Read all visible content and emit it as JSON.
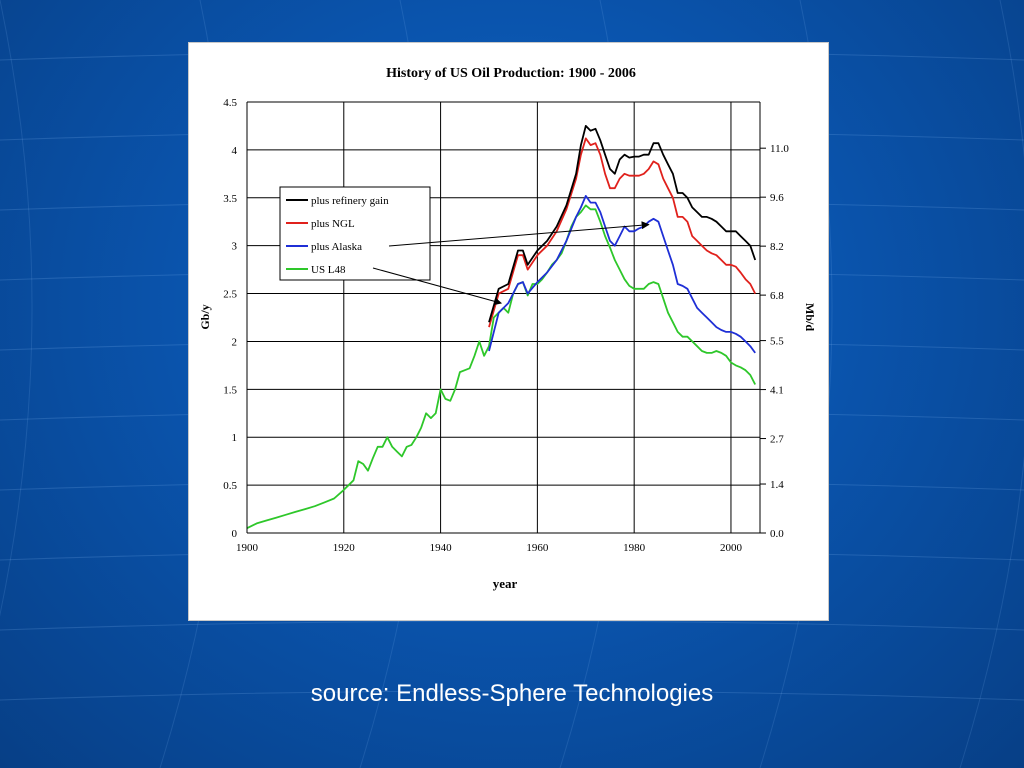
{
  "slide": {
    "source_caption": "source: Endless-Sphere Technologies"
  },
  "colors": {
    "background": "#0a54ad",
    "series_refinery": "#000000",
    "series_ngl": "#e0211c",
    "series_alaska": "#1f2fd6",
    "series_l48": "#2ec72a"
  },
  "chart_data": {
    "type": "line",
    "title": "History of US Oil Production: 1900 - 2006",
    "xlabel": "year",
    "ylabel": "Gb/y",
    "y2label": "Mb/d",
    "xlim": [
      1900,
      2006
    ],
    "ylim": [
      0,
      4.5
    ],
    "xticks": [
      "1900",
      "1920",
      "1940",
      "1960",
      "1980",
      "2000"
    ],
    "yticks": [
      "0",
      "0.5",
      "1",
      "1.5",
      "2",
      "2.5",
      "3",
      "3.5",
      "4",
      "4.5"
    ],
    "y2ticks": [
      "0.0",
      "1.4",
      "2.7",
      "4.1",
      "5.5",
      "6.8",
      "8.2",
      "9.6",
      "11.0"
    ],
    "grid": true,
    "legend_position": "upper-left",
    "legend": [
      "plus refinery gain",
      "plus NGL",
      "plus Alaska",
      "US L48"
    ],
    "series": [
      {
        "name": "plus refinery gain",
        "x": [
          1950,
          1952,
          1954,
          1956,
          1957,
          1958,
          1960,
          1962,
          1964,
          1966,
          1968,
          1969,
          1970,
          1971,
          1972,
          1973,
          1974,
          1975,
          1976,
          1977,
          1978,
          1979,
          1980,
          1981,
          1982,
          1983,
          1984,
          1985,
          1986,
          1987,
          1988,
          1989,
          1990,
          1991,
          1992,
          1993,
          1994,
          1995,
          1996,
          1997,
          1998,
          1999,
          2000,
          2001,
          2002,
          2003,
          2004,
          2005
        ],
        "values": [
          2.2,
          2.55,
          2.6,
          2.95,
          2.95,
          2.8,
          2.95,
          3.05,
          3.2,
          3.42,
          3.75,
          4.05,
          4.25,
          4.2,
          4.22,
          4.1,
          3.95,
          3.8,
          3.75,
          3.9,
          3.95,
          3.92,
          3.93,
          3.93,
          3.95,
          3.95,
          4.07,
          4.07,
          3.95,
          3.85,
          3.75,
          3.55,
          3.55,
          3.5,
          3.4,
          3.35,
          3.3,
          3.3,
          3.28,
          3.25,
          3.2,
          3.15,
          3.15,
          3.15,
          3.1,
          3.05,
          3.0,
          2.85
        ]
      },
      {
        "name": "plus NGL",
        "x": [
          1950,
          1952,
          1954,
          1956,
          1957,
          1958,
          1960,
          1962,
          1964,
          1966,
          1968,
          1969,
          1970,
          1971,
          1972,
          1973,
          1974,
          1975,
          1976,
          1977,
          1978,
          1979,
          1980,
          1981,
          1982,
          1983,
          1984,
          1985,
          1986,
          1987,
          1988,
          1989,
          1990,
          1991,
          1992,
          1993,
          1994,
          1995,
          1996,
          1997,
          1998,
          1999,
          2000,
          2001,
          2002,
          2003,
          2004,
          2005
        ],
        "values": [
          2.15,
          2.5,
          2.55,
          2.9,
          2.9,
          2.75,
          2.9,
          3.0,
          3.15,
          3.38,
          3.7,
          3.95,
          4.12,
          4.05,
          4.07,
          3.95,
          3.75,
          3.6,
          3.6,
          3.7,
          3.75,
          3.73,
          3.73,
          3.73,
          3.75,
          3.8,
          3.88,
          3.85,
          3.7,
          3.6,
          3.5,
          3.3,
          3.3,
          3.25,
          3.1,
          3.05,
          3.0,
          2.95,
          2.92,
          2.9,
          2.85,
          2.8,
          2.8,
          2.78,
          2.72,
          2.65,
          2.6,
          2.5
        ]
      },
      {
        "name": "plus Alaska",
        "x": [
          1950,
          1952,
          1954,
          1956,
          1957,
          1958,
          1960,
          1962,
          1964,
          1966,
          1968,
          1969,
          1970,
          1971,
          1972,
          1973,
          1974,
          1975,
          1976,
          1977,
          1978,
          1979,
          1980,
          1981,
          1982,
          1983,
          1984,
          1985,
          1986,
          1987,
          1988,
          1989,
          1990,
          1991,
          1992,
          1993,
          1994,
          1995,
          1996,
          1997,
          1998,
          1999,
          2000,
          2001,
          2002,
          2003,
          2004,
          2005
        ],
        "values": [
          1.9,
          2.3,
          2.4,
          2.6,
          2.62,
          2.5,
          2.62,
          2.72,
          2.85,
          3.05,
          3.3,
          3.4,
          3.52,
          3.45,
          3.45,
          3.35,
          3.2,
          3.05,
          3.0,
          3.1,
          3.2,
          3.15,
          3.15,
          3.18,
          3.2,
          3.25,
          3.28,
          3.25,
          3.1,
          2.95,
          2.8,
          2.6,
          2.58,
          2.55,
          2.45,
          2.35,
          2.3,
          2.25,
          2.2,
          2.15,
          2.12,
          2.1,
          2.1,
          2.08,
          2.05,
          2.0,
          1.95,
          1.88
        ]
      },
      {
        "name": "US L48",
        "x": [
          1900,
          1902,
          1904,
          1906,
          1908,
          1910,
          1912,
          1914,
          1916,
          1918,
          1920,
          1922,
          1923,
          1924,
          1925,
          1926,
          1927,
          1928,
          1929,
          1930,
          1931,
          1932,
          1933,
          1934,
          1935,
          1936,
          1937,
          1938,
          1939,
          1940,
          1941,
          1942,
          1943,
          1944,
          1945,
          1946,
          1947,
          1948,
          1949,
          1950,
          1951,
          1952,
          1953,
          1954,
          1955,
          1956,
          1957,
          1958,
          1959,
          1960,
          1961,
          1962,
          1963,
          1964,
          1965,
          1966,
          1967,
          1968,
          1969,
          1970,
          1971,
          1972,
          1973,
          1974,
          1975,
          1976,
          1977,
          1978,
          1979,
          1980,
          1981,
          1982,
          1983,
          1984,
          1985,
          1986,
          1987,
          1988,
          1989,
          1990,
          1991,
          1992,
          1993,
          1994,
          1995,
          1996,
          1997,
          1998,
          1999,
          2000,
          2001,
          2002,
          2003,
          2004,
          2005
        ],
        "values": [
          0.05,
          0.1,
          0.13,
          0.16,
          0.19,
          0.22,
          0.25,
          0.28,
          0.32,
          0.36,
          0.45,
          0.55,
          0.75,
          0.72,
          0.65,
          0.78,
          0.9,
          0.9,
          1.0,
          0.9,
          0.85,
          0.8,
          0.9,
          0.92,
          1.0,
          1.1,
          1.25,
          1.2,
          1.25,
          1.5,
          1.4,
          1.38,
          1.5,
          1.68,
          1.7,
          1.72,
          1.85,
          2.0,
          1.85,
          1.95,
          2.25,
          2.3,
          2.35,
          2.3,
          2.5,
          2.6,
          2.62,
          2.48,
          2.6,
          2.6,
          2.65,
          2.72,
          2.8,
          2.85,
          2.92,
          3.05,
          3.2,
          3.3,
          3.35,
          3.42,
          3.38,
          3.38,
          3.25,
          3.1,
          2.98,
          2.85,
          2.75,
          2.65,
          2.58,
          2.55,
          2.55,
          2.55,
          2.6,
          2.62,
          2.6,
          2.45,
          2.3,
          2.2,
          2.1,
          2.05,
          2.05,
          2.0,
          1.95,
          1.9,
          1.88,
          1.88,
          1.9,
          1.88,
          1.85,
          1.78,
          1.75,
          1.73,
          1.7,
          1.65,
          1.55
        ]
      }
    ]
  }
}
